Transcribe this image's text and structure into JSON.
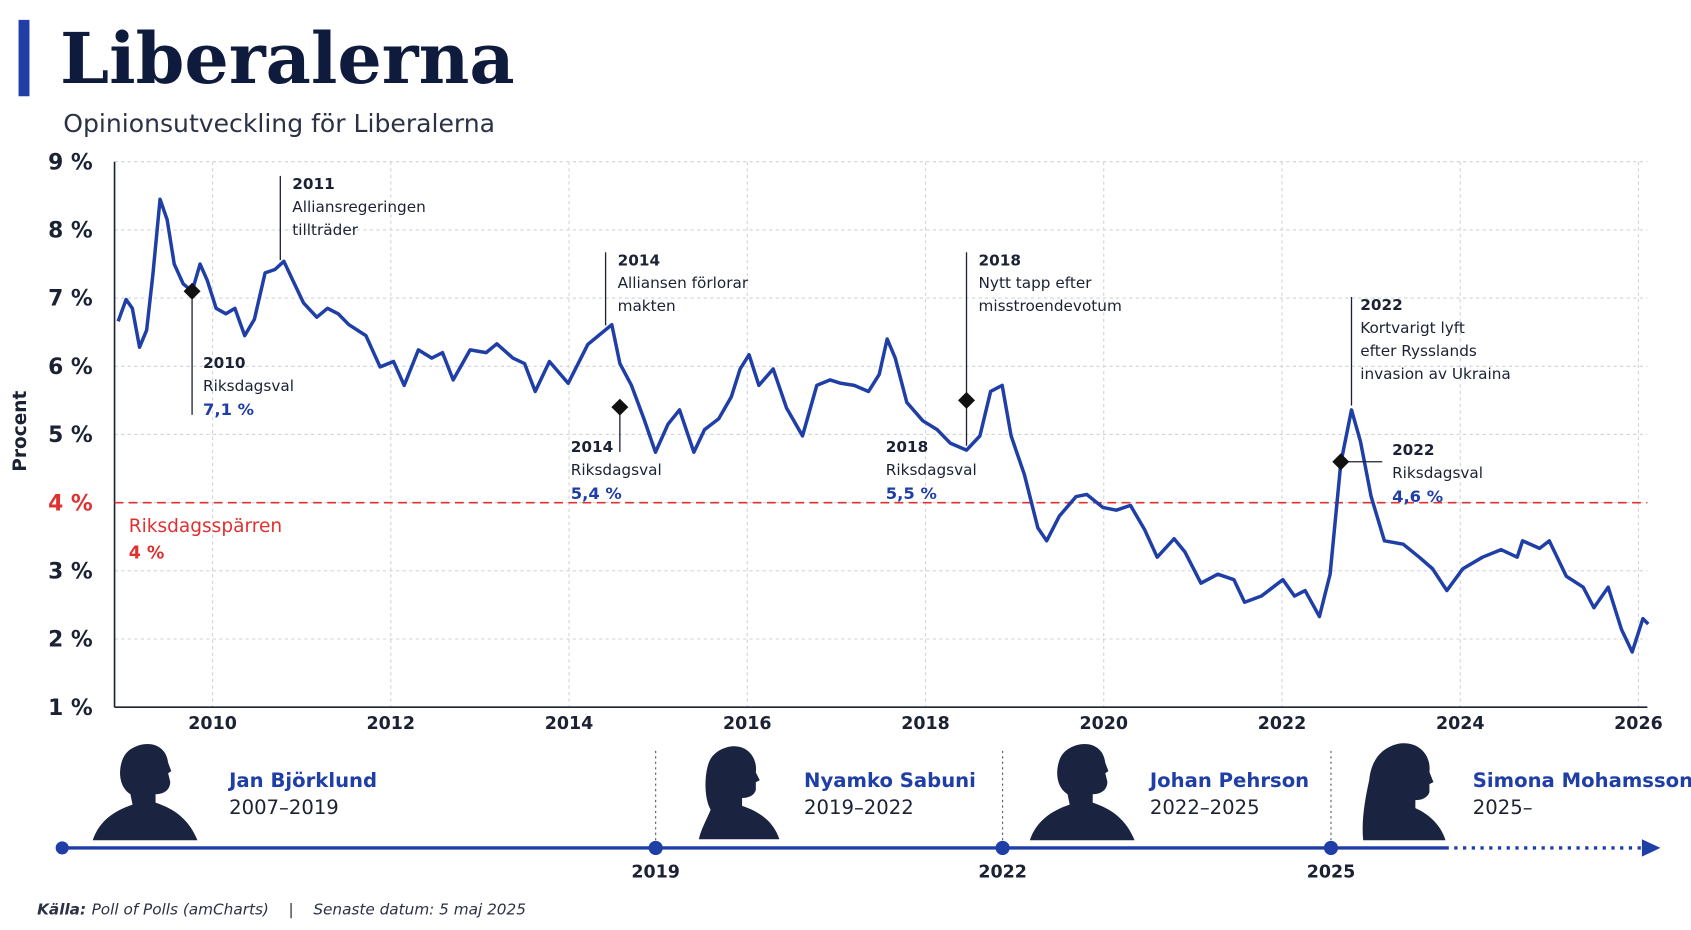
{
  "title": "Liberalerna",
  "subtitle": "Opinionsutveckling för Liberalerna",
  "chart_data": {
    "type": "line",
    "y_label": "Procent",
    "xlim": [
      2008.9,
      2026.1
    ],
    "xticks": [
      2010,
      2012,
      2014,
      2016,
      2018,
      2020,
      2022,
      2024,
      2026
    ],
    "ylim": [
      1,
      9
    ],
    "yticks": [
      {
        "value": 1,
        "label": "1 %"
      },
      {
        "value": 2,
        "label": "2 %"
      },
      {
        "value": 3,
        "label": "3 %"
      },
      {
        "value": 4,
        "label": "4 %"
      },
      {
        "value": 5,
        "label": "5 %"
      },
      {
        "value": 6,
        "label": "6 %"
      },
      {
        "value": 7,
        "label": "7 %"
      },
      {
        "value": 8,
        "label": "8 %"
      },
      {
        "value": 9,
        "label": "9 %"
      }
    ],
    "grid": true,
    "x": [
      2008.94,
      2009.03,
      2009.1,
      2009.18,
      2009.26,
      2009.33,
      2009.41,
      2009.49,
      2009.57,
      2009.67,
      2009.77,
      2009.86,
      2009.94,
      2010.04,
      2010.15,
      2010.25,
      2010.36,
      2010.47,
      2010.59,
      2010.7,
      2010.8,
      2010.9,
      2011.02,
      2011.17,
      2011.29,
      2011.41,
      2011.53,
      2011.72,
      2011.88,
      2012.03,
      2012.15,
      2012.31,
      2012.46,
      2012.58,
      2012.7,
      2012.89,
      2013.07,
      2013.19,
      2013.37,
      2013.5,
      2013.62,
      2013.78,
      2013.99,
      2014.21,
      2014.33,
      2014.48,
      2014.57,
      2014.7,
      2014.84,
      2014.97,
      2015.11,
      2015.24,
      2015.4,
      2015.52,
      2015.68,
      2015.82,
      2015.92,
      2016.02,
      2016.13,
      2016.29,
      2016.44,
      2016.62,
      2016.78,
      2016.93,
      2017.05,
      2017.2,
      2017.36,
      2017.48,
      2017.57,
      2017.66,
      2017.79,
      2017.97,
      2018.13,
      2018.28,
      2018.46,
      2018.61,
      2018.73,
      2018.86,
      2018.96,
      2019.11,
      2019.26,
      2019.36,
      2019.5,
      2019.69,
      2019.81,
      2019.99,
      2020.14,
      2020.3,
      2020.46,
      2020.6,
      2020.79,
      2020.91,
      2021.09,
      2021.28,
      2021.46,
      2021.58,
      2021.77,
      2022.01,
      2022.14,
      2022.26,
      2022.42,
      2022.54,
      2022.66,
      2022.78,
      2022.88,
      2023.0,
      2023.15,
      2023.36,
      2023.54,
      2023.69,
      2023.85,
      2024.03,
      2024.25,
      2024.46,
      2024.64,
      2024.7,
      2024.89,
      2025.0,
      2025.19,
      2025.38,
      2025.5,
      2025.66,
      2025.81,
      2025.93,
      2026.05,
      2026.11
    ],
    "series": [
      {
        "color": "#1f3fa6",
        "values": [
          6.66,
          6.98,
          6.85,
          6.28,
          6.53,
          7.34,
          8.45,
          8.15,
          7.5,
          7.21,
          7.1,
          7.5,
          7.26,
          6.85,
          6.77,
          6.85,
          6.45,
          6.69,
          7.37,
          7.42,
          7.54,
          7.26,
          6.93,
          6.72,
          6.85,
          6.77,
          6.61,
          6.45,
          5.99,
          6.07,
          5.72,
          6.24,
          6.12,
          6.2,
          5.8,
          6.24,
          6.2,
          6.33,
          6.12,
          6.04,
          5.63,
          6.07,
          5.75,
          6.32,
          6.45,
          6.61,
          6.04,
          5.72,
          5.23,
          4.74,
          5.15,
          5.36,
          4.74,
          5.07,
          5.23,
          5.55,
          5.96,
          6.17,
          5.72,
          5.96,
          5.39,
          4.98,
          5.72,
          5.8,
          5.75,
          5.72,
          5.63,
          5.88,
          6.4,
          6.12,
          5.47,
          5.2,
          5.07,
          4.87,
          4.77,
          4.98,
          5.63,
          5.72,
          4.98,
          4.41,
          3.63,
          3.44,
          3.8,
          4.09,
          4.12,
          3.93,
          3.89,
          3.96,
          3.6,
          3.2,
          3.47,
          3.28,
          2.82,
          2.95,
          2.87,
          2.54,
          2.63,
          2.87,
          2.63,
          2.71,
          2.33,
          2.95,
          4.58,
          5.36,
          4.9,
          4.09,
          3.44,
          3.39,
          3.2,
          3.03,
          2.71,
          3.03,
          3.2,
          3.31,
          3.2,
          3.44,
          3.33,
          3.44,
          2.92,
          2.76,
          2.46,
          2.76,
          2.14,
          1.81,
          2.3,
          2.22
        ]
      }
    ],
    "threshold": {
      "value": 4,
      "label": "Riksdagsspärren",
      "value_label": "4 %",
      "color": "#e03131"
    },
    "elections": [
      {
        "x": 2009.77,
        "year": "2010",
        "label": "Riksdagsval",
        "value": 7.1,
        "value_label": "7,1 %"
      },
      {
        "x": 2014.57,
        "year": "2014",
        "label": "Riksdagsval",
        "value": 5.4,
        "value_label": "5,4 %"
      },
      {
        "x": 2018.46,
        "year": "2018",
        "label": "Riksdagsval",
        "value": 5.5,
        "value_label": "5,5 %"
      },
      {
        "x": 2022.66,
        "year": "2022",
        "label": "Riksdagsval",
        "value": 4.6,
        "value_label": "4,6 %"
      }
    ],
    "events": [
      {
        "x": 2010.76,
        "year": "2011",
        "lines": [
          "Alliansregeringen",
          "tillträder"
        ]
      },
      {
        "x": 2014.41,
        "year": "2014",
        "lines": [
          "Alliansen förlorar",
          "makten"
        ]
      },
      {
        "x": 2018.46,
        "year": "2018",
        "lines": [
          "Nytt tapp efter",
          "misstroendevotum"
        ]
      },
      {
        "x": 2022.78,
        "year": "2022",
        "lines": [
          "Kortvarigt lyft",
          "efter Rysslands",
          "invasion av Ukraina"
        ]
      }
    ]
  },
  "timeline": {
    "ticks": [
      "2019",
      "2022",
      "2025"
    ],
    "leaders": [
      {
        "name": "Jan Björklund",
        "years": "2007–2019"
      },
      {
        "name": "Nyamko Sabuni",
        "years": "2019–2022"
      },
      {
        "name": "Johan Pehrson",
        "years": "2022–2025"
      },
      {
        "name": "Simona Mohamsson",
        "years": "2025–"
      }
    ]
  },
  "footer": {
    "source_label": "Källa:",
    "source": "Poll of Polls (amCharts)",
    "separator": "|",
    "date": "Senaste datum: 5 maj 2025"
  }
}
